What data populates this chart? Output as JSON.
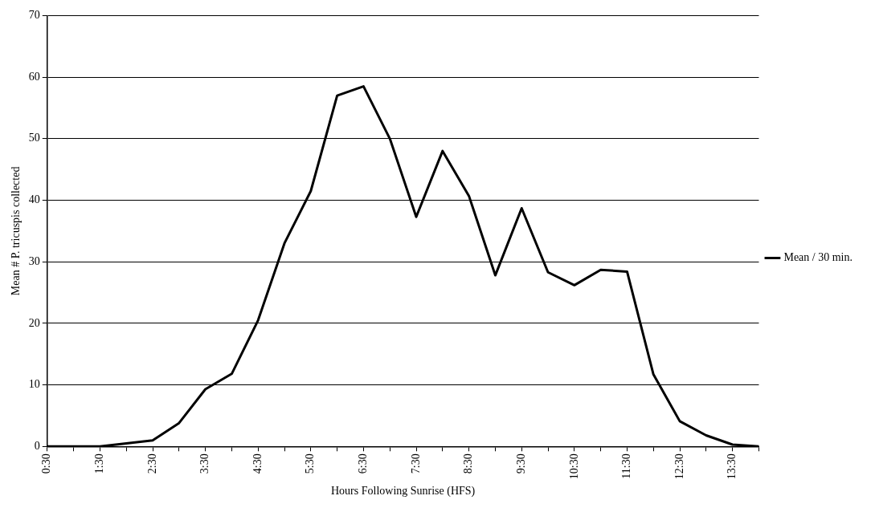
{
  "chart_data": {
    "type": "line",
    "xlabel": "Hours Following Sunrise (HFS)",
    "ylabel": "Mean # P. tricuspis collected",
    "categories": [
      "0:30",
      null,
      "1:30",
      null,
      "2:30",
      null,
      "3:30",
      null,
      "4:30",
      null,
      "5:30",
      null,
      "6:30",
      null,
      "7:30",
      null,
      "8:30",
      null,
      "9:30",
      null,
      "10:30",
      null,
      "11:30",
      null,
      "12:30",
      null,
      "13:30",
      null
    ],
    "series": [
      {
        "name": "Mean / 30 min.",
        "color": "#000000",
        "values": [
          0,
          0,
          0,
          0.5,
          1,
          3.8,
          9.3,
          11.8,
          20.5,
          33,
          41.5,
          57,
          58.5,
          50,
          37.3,
          48,
          40.7,
          27.8,
          38.7,
          28.3,
          26.2,
          28.7,
          28.4,
          11.7,
          4.1,
          1.8,
          0.3,
          0
        ]
      }
    ],
    "ylim": [
      0,
      70
    ],
    "yticks": [
      0,
      10,
      20,
      30,
      40,
      50,
      60,
      70
    ],
    "grid": "y",
    "legend": "right",
    "marker": "none",
    "line_style": "solid"
  }
}
